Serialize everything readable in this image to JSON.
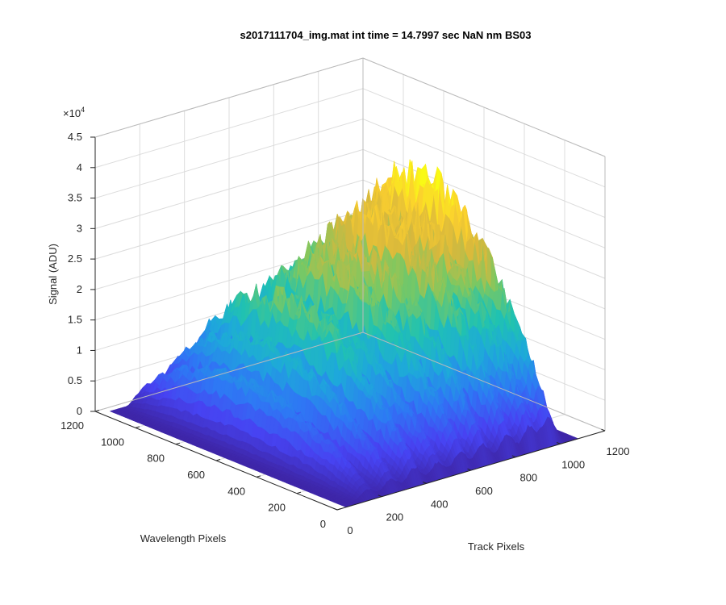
{
  "chart_data": {
    "type": "surface",
    "title": "s2017111704_img.mat int time = 14.7997 sec  NaN nm BS03",
    "xlabel": "Track Pixels",
    "ylabel": "Wavelength Pixels",
    "zlabel": "Signal (ADU)",
    "z_multiplier_label": "×10",
    "z_multiplier_exponent": "4",
    "xlim": [
      0,
      1200
    ],
    "ylim": [
      0,
      1200
    ],
    "zlim": [
      0,
      45000
    ],
    "x_ticks": [
      "0",
      "200",
      "400",
      "600",
      "800",
      "1000",
      "1200"
    ],
    "y_ticks": [
      "0",
      "200",
      "400",
      "600",
      "800",
      "1000",
      "1200"
    ],
    "z_ticks": [
      "0",
      "0.5",
      "1",
      "1.5",
      "2",
      "2.5",
      "3",
      "3.5",
      "4",
      "4.5"
    ],
    "grid": true,
    "colormap": [
      "#3e26a8",
      "#4743f2",
      "#2e78f4",
      "#1ea8db",
      "#20c2b1",
      "#7bc862",
      "#d8b83c",
      "#fbcf2f",
      "#f9fb15"
    ],
    "tracks": [
      {
        "center": 150,
        "peak": 12000
      },
      {
        "center": 255,
        "peak": 17000
      },
      {
        "center": 360,
        "peak": 23000
      },
      {
        "center": 465,
        "peak": 20000
      },
      {
        "center": 565,
        "peak": 26000
      },
      {
        "center": 665,
        "peak": 28000
      },
      {
        "center": 775,
        "peak": 32000
      },
      {
        "center": 875,
        "peak": 32000
      },
      {
        "center": 960,
        "peak": 36000
      }
    ]
  }
}
